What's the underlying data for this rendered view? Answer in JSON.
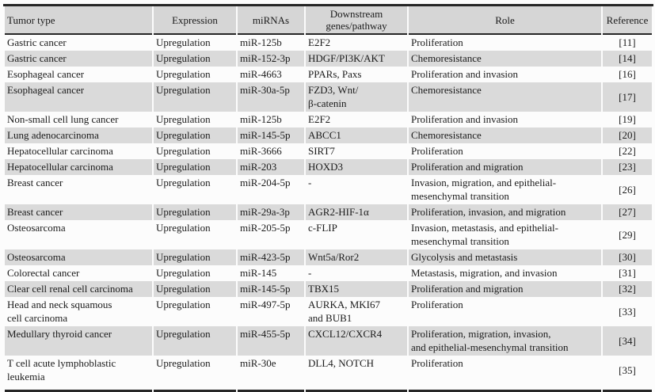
{
  "colors": {
    "page_bg": "#fcfcfc",
    "header_bg": "#d6d6d6",
    "stripe_bg": "#dadada",
    "rule": "#262626",
    "text": "#1b1b1b"
  },
  "table": {
    "columns": [
      {
        "label": "Tumor type"
      },
      {
        "label": "Expression"
      },
      {
        "label": "miRNAs"
      },
      {
        "label": "Downstream genes/pathway"
      },
      {
        "label": "Role"
      },
      {
        "label": "Reference"
      }
    ],
    "rows": [
      [
        "Gastric cancer",
        "Upregulation",
        "miR-125b",
        "E2F2",
        "Proliferation",
        "[11]"
      ],
      [
        "Gastric cancer",
        "Upregulation",
        "miR-152-3p",
        "HDGF/PI3K/AKT",
        "Chemoresistance",
        "[14]"
      ],
      [
        "Esophageal cancer",
        "Upregulation",
        "miR-4663",
        "PPARs, Paxs",
        "Proliferation and invasion",
        "[16]"
      ],
      [
        "Esophageal cancer",
        "Upregulation",
        "miR-30a-5p",
        "FZD3, Wnt/\nβ-catenin",
        "Chemoresistance",
        "[17]"
      ],
      [
        "Non-small cell lung cancer",
        "Upregulation",
        "miR-125b",
        "E2F2",
        "Proliferation and invasion",
        "[19]"
      ],
      [
        "Lung adenocarcinoma",
        "Upregulation",
        "miR-145-5p",
        "ABCC1",
        "Chemoresistance",
        "[20]"
      ],
      [
        "Hepatocellular carcinoma",
        "Upregulation",
        "miR-3666",
        "SIRT7",
        "Proliferation",
        "[22]"
      ],
      [
        "Hepatocellular carcinoma",
        "Upregulation",
        "miR-203",
        "HOXD3",
        "Proliferation and migration",
        "[23]"
      ],
      [
        "Breast cancer",
        "Upregulation",
        "miR-204-5p",
        "-",
        "Invasion, migration, and epithelial-\nmesenchymal transition",
        "[26]"
      ],
      [
        "Breast cancer",
        "Upregulation",
        "miR-29a-3p",
        "AGR2-HIF-1α",
        "Proliferation, invasion, and migration",
        "[27]"
      ],
      [
        "Osteosarcoma",
        "Upregulation",
        "miR-205-5p",
        "c-FLIP",
        "Invasion, metastasis, and epithelial-\nmesenchymal transition",
        "[29]"
      ],
      [
        "Osteosarcoma",
        "Upregulation",
        "miR-423-5p",
        "Wnt5a/Ror2",
        "Glycolysis and metastasis",
        "[30]"
      ],
      [
        "Colorectal cancer",
        "Upregulation",
        "miR-145",
        "-",
        "Metastasis, migration, and invasion",
        "[31]"
      ],
      [
        "Clear cell renal cell carcinoma",
        "Upregulation",
        "miR-145-5p",
        "TBX15",
        "Proliferation and migration",
        "[32]"
      ],
      [
        "Head and neck squamous\ncell carcinoma",
        "Upregulation",
        "miR-497-5p",
        "AURKA, MKI67\nand BUB1",
        "Proliferation",
        "[33]"
      ],
      [
        "Medullary thyroid cancer",
        "Upregulation",
        "miR-455-5p",
        "CXCL12/CXCR4",
        "Proliferation, migration, invasion,\nand epithelial-mesenchymal transition",
        "[34]"
      ],
      [
        "T cell acute lymphoblastic\nleukemia",
        "Upregulation",
        "miR-30e",
        "DLL4, NOTCH",
        "Proliferation",
        "[35]"
      ]
    ]
  }
}
